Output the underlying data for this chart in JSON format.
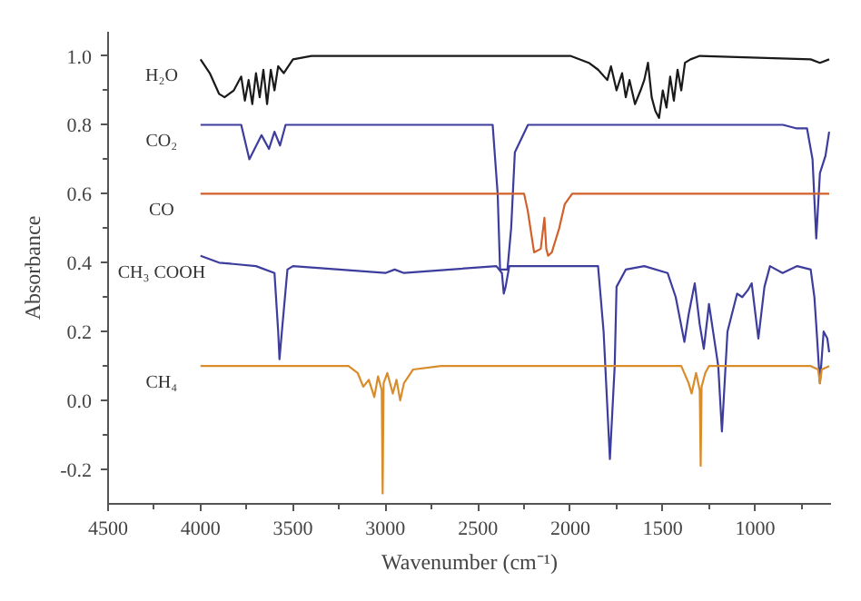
{
  "chart_data": {
    "type": "line",
    "xlabel": "Wavenumber (cm⁻¹)",
    "ylabel": "Absorbance",
    "xlim": [
      4500,
      590
    ],
    "ylim": [
      -0.3,
      1.07
    ],
    "xticks": [
      4500,
      4000,
      3500,
      3000,
      2500,
      2000,
      1500,
      1000
    ],
    "yticks": [
      {
        "value": -0.2,
        "label": "-0.2"
      },
      {
        "value": 0,
        "label": "0.0"
      },
      0.2,
      0.4,
      0.6,
      0.8,
      {
        "value": 1,
        "label": "1.0"
      }
    ],
    "grid": false,
    "series": [
      {
        "name": "H₂O",
        "color": "#1a1a1a",
        "x": [
          4000,
          3950,
          3900,
          3870,
          3820,
          3780,
          3760,
          3740,
          3720,
          3700,
          3680,
          3660,
          3640,
          3620,
          3600,
          3580,
          3550,
          3500,
          3400,
          2000,
          1900,
          1850,
          1800,
          1780,
          1750,
          1720,
          1700,
          1680,
          1650,
          1620,
          1600,
          1580,
          1560,
          1540,
          1520,
          1500,
          1480,
          1460,
          1440,
          1420,
          1400,
          1380,
          1350,
          1300,
          700,
          650,
          600
        ],
        "values": [
          0.99,
          0.95,
          0.89,
          0.88,
          0.9,
          0.94,
          0.87,
          0.93,
          0.86,
          0.95,
          0.88,
          0.96,
          0.86,
          0.96,
          0.9,
          0.97,
          0.95,
          0.99,
          1.0,
          1.0,
          0.98,
          0.96,
          0.93,
          0.97,
          0.9,
          0.95,
          0.88,
          0.93,
          0.86,
          0.9,
          0.93,
          0.98,
          0.88,
          0.84,
          0.82,
          0.9,
          0.85,
          0.94,
          0.87,
          0.96,
          0.9,
          0.98,
          0.99,
          1.0,
          0.99,
          0.98,
          0.99
        ]
      },
      {
        "name": "CO₂",
        "color": "#3d3d9e",
        "x": [
          4000,
          3780,
          3736,
          3670,
          3630,
          3600,
          3570,
          3540,
          2420,
          2393,
          2380,
          2340,
          2320,
          2300,
          2229,
          2150,
          850,
          780,
          720,
          690,
          670,
          650,
          620,
          600
        ],
        "values": [
          0.8,
          0.8,
          0.7,
          0.77,
          0.73,
          0.78,
          0.74,
          0.8,
          0.8,
          0.6,
          0.38,
          0.38,
          0.5,
          0.72,
          0.8,
          0.8,
          0.8,
          0.79,
          0.79,
          0.7,
          0.47,
          0.66,
          0.71,
          0.78
        ]
      },
      {
        "name": "CO",
        "color": "#d2602a",
        "x": [
          4000,
          2250,
          2230,
          2196,
          2160,
          2140,
          2130,
          2120,
          2100,
          2060,
          2030,
          1990,
          1970,
          600
        ],
        "values": [
          0.6,
          0.6,
          0.55,
          0.43,
          0.44,
          0.53,
          0.44,
          0.42,
          0.43,
          0.5,
          0.57,
          0.6,
          0.6,
          0.6
        ]
      },
      {
        "name": "CH₃ COOH",
        "color": "#3d3d9e",
        "x": [
          4000,
          3900,
          3700,
          3600,
          3580,
          3573,
          3560,
          3530,
          3500,
          3000,
          2950,
          2900,
          2400,
          2370,
          2360,
          2350,
          2330,
          1850,
          1820,
          1786,
          1760,
          1750,
          1700,
          1600,
          1474,
          1430,
          1383,
          1360,
          1327,
          1300,
          1278,
          1250,
          1200,
          1180,
          1150,
          1098,
          1070,
          1040,
          1019,
          983,
          950,
          920,
          852,
          773,
          700,
          680,
          670,
          650,
          630,
          610,
          600
        ],
        "values": [
          0.42,
          0.4,
          0.39,
          0.37,
          0.2,
          0.12,
          0.2,
          0.38,
          0.39,
          0.37,
          0.38,
          0.37,
          0.39,
          0.37,
          0.31,
          0.33,
          0.39,
          0.39,
          0.2,
          -0.17,
          0.1,
          0.33,
          0.38,
          0.39,
          0.37,
          0.3,
          0.17,
          0.25,
          0.34,
          0.22,
          0.15,
          0.28,
          0.1,
          -0.09,
          0.2,
          0.31,
          0.3,
          0.32,
          0.34,
          0.18,
          0.33,
          0.39,
          0.37,
          0.39,
          0.38,
          0.3,
          0.22,
          0.05,
          0.2,
          0.18,
          0.14
        ]
      },
      {
        "name": "CH₄",
        "color": "#d98c2a",
        "x": [
          4000,
          3200,
          3150,
          3120,
          3090,
          3060,
          3040,
          3020,
          3015,
          3010,
          2990,
          2960,
          2940,
          2920,
          2900,
          2850,
          2700,
          1400,
          1360,
          1344,
          1320,
          1300,
          1295,
          1290,
          1270,
          1250,
          1200,
          700,
          660,
          650,
          640,
          600
        ],
        "values": [
          0.1,
          0.1,
          0.08,
          0.04,
          0.06,
          0.01,
          0.07,
          0.03,
          -0.27,
          0.05,
          0.08,
          0.02,
          0.06,
          0.0,
          0.05,
          0.09,
          0.1,
          0.1,
          0.05,
          0.02,
          0.08,
          0.03,
          -0.19,
          0.04,
          0.08,
          0.1,
          0.1,
          0.1,
          0.09,
          0.05,
          0.09,
          0.1
        ]
      }
    ]
  }
}
